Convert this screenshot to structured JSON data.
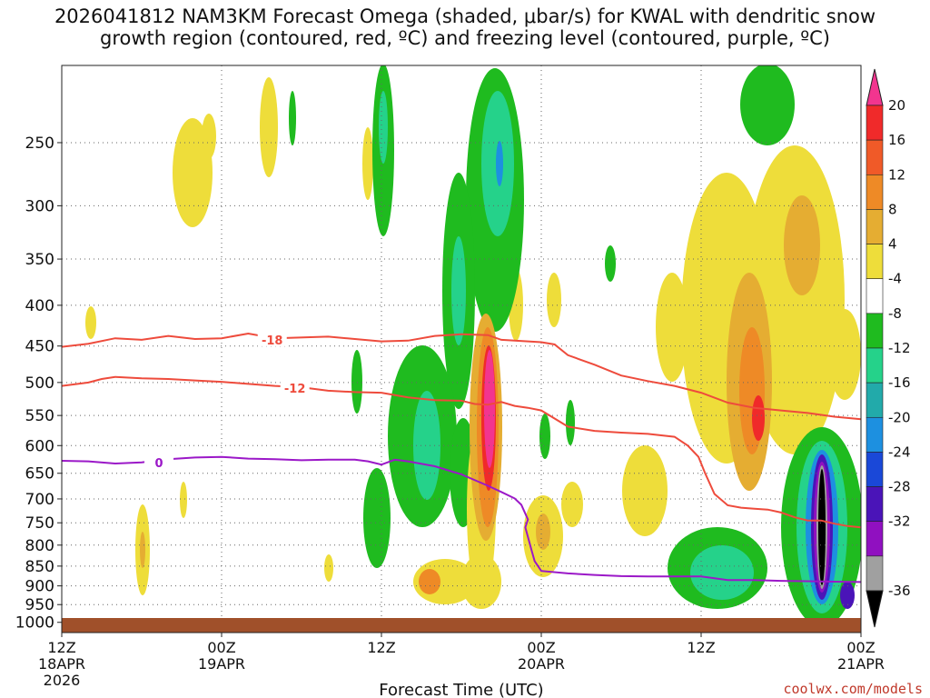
{
  "chart_data": {
    "type": "heatmap",
    "title_line1": "2026041812 NAM3KM Forecast Omega (shaded, μbar/s) for KWAL with dendritic snow",
    "title_line2": "growth region (contoured, red, ºC) and freezing level (contoured, purple, ºC)",
    "xlabel": "Forecast Time (UTC)",
    "credit": "coolwx.com/models",
    "x_ticks": [
      {
        "hour": 0,
        "line1": "12Z",
        "line2": "18APR",
        "line3": "2026"
      },
      {
        "hour": 12,
        "line1": "00Z",
        "line2": "19APR",
        "line3": ""
      },
      {
        "hour": 24,
        "line1": "12Z",
        "line2": "",
        "line3": ""
      },
      {
        "hour": 36,
        "line1": "00Z",
        "line2": "20APR",
        "line3": ""
      },
      {
        "hour": 48,
        "line1": "12Z",
        "line2": "",
        "line3": ""
      },
      {
        "hour": 60,
        "line1": "00Z",
        "line2": "21APR",
        "line3": ""
      }
    ],
    "x_range_hours": [
      0,
      60
    ],
    "y_ticks": [
      250,
      300,
      350,
      400,
      450,
      500,
      550,
      600,
      650,
      700,
      750,
      800,
      850,
      900,
      950,
      1000
    ],
    "y_labels": [
      "250",
      "300",
      "350",
      "400",
      "450",
      "500",
      "550",
      "600",
      "650",
      "700",
      "750",
      "800",
      "850",
      "900",
      "950",
      "1000"
    ],
    "y_range_hPa": [
      200,
      1030
    ],
    "colorbar_labels": [
      "20",
      "16",
      "12",
      "8",
      "4",
      "-4",
      "-8",
      "-12",
      "-16",
      "-20",
      "-24",
      "-28",
      "-32",
      "-36"
    ],
    "colorbar_colors": [
      "#f2358f",
      "#f02a2a",
      "#f05a28",
      "#ee8a26",
      "#e5ad32",
      "#eedd3a",
      "#ffffff",
      "#1fbb1f",
      "#25d28a",
      "#22aaaa",
      "#1d90e0",
      "#1a48d8",
      "#4a14b8",
      "#9010c0",
      "#a0a0a0",
      "#000000"
    ],
    "colors": {
      "dgz": "#ee4b3c",
      "freezing": "#9b18c8",
      "ground": "#a0502a"
    },
    "contours": [
      {
        "name": "dgz-minus18",
        "label": "-18",
        "label_hour": 15.8,
        "label_p": 442,
        "points": [
          [
            0,
            451
          ],
          [
            2,
            447
          ],
          [
            4,
            440
          ],
          [
            6,
            442
          ],
          [
            8,
            437
          ],
          [
            10,
            441
          ],
          [
            12,
            440
          ],
          [
            14,
            434
          ],
          [
            16,
            440
          ],
          [
            20,
            438
          ],
          [
            22,
            441
          ],
          [
            24,
            444
          ],
          [
            26,
            443
          ],
          [
            28,
            437
          ],
          [
            30,
            435
          ],
          [
            32,
            436
          ],
          [
            33,
            442
          ],
          [
            34,
            443
          ],
          [
            36,
            445
          ],
          [
            37,
            448
          ],
          [
            38,
            462
          ],
          [
            40,
            475
          ],
          [
            42,
            490
          ],
          [
            44,
            498
          ],
          [
            46,
            505
          ],
          [
            48,
            515
          ],
          [
            50,
            530
          ],
          [
            52,
            538
          ],
          [
            54,
            542
          ],
          [
            56,
            546
          ],
          [
            58,
            552
          ],
          [
            60,
            556
          ]
        ]
      },
      {
        "name": "dgz-minus12",
        "label": "-12",
        "label_hour": 17.5,
        "label_p": 508,
        "points": [
          [
            0,
            505
          ],
          [
            2,
            500
          ],
          [
            3,
            495
          ],
          [
            4,
            492
          ],
          [
            6,
            494
          ],
          [
            8,
            495
          ],
          [
            10,
            497
          ],
          [
            12,
            499
          ],
          [
            14,
            502
          ],
          [
            16,
            505
          ],
          [
            18,
            507
          ],
          [
            20,
            512
          ],
          [
            22,
            514
          ],
          [
            24,
            515
          ],
          [
            26,
            522
          ],
          [
            28,
            526
          ],
          [
            30,
            527
          ],
          [
            31,
            532
          ],
          [
            32,
            533
          ],
          [
            33,
            529
          ],
          [
            34,
            535
          ],
          [
            35,
            538
          ],
          [
            36,
            542
          ],
          [
            38,
            568
          ],
          [
            40,
            575
          ],
          [
            42,
            578
          ],
          [
            44,
            580
          ],
          [
            46,
            585
          ],
          [
            47,
            600
          ],
          [
            47.8,
            620
          ],
          [
            48.3,
            650
          ],
          [
            49,
            690
          ],
          [
            50,
            713
          ],
          [
            51,
            718
          ],
          [
            52,
            720
          ],
          [
            53,
            722
          ],
          [
            54,
            728
          ],
          [
            55,
            738
          ],
          [
            56,
            745
          ],
          [
            57,
            745
          ],
          [
            58,
            752
          ],
          [
            59,
            757
          ],
          [
            60,
            760
          ]
        ]
      },
      {
        "name": "freezing-0",
        "label": "0",
        "label_hour": 7.3,
        "label_p": 630,
        "points": [
          [
            0,
            627
          ],
          [
            2,
            628
          ],
          [
            4,
            632
          ],
          [
            6,
            630
          ],
          [
            8,
            624
          ],
          [
            10,
            621
          ],
          [
            12,
            620
          ],
          [
            14,
            623
          ],
          [
            16,
            624
          ],
          [
            18,
            626
          ],
          [
            20,
            625
          ],
          [
            22,
            625
          ],
          [
            23,
            628
          ],
          [
            24,
            634
          ],
          [
            25,
            625
          ],
          [
            26,
            628
          ],
          [
            28,
            637
          ],
          [
            30,
            652
          ],
          [
            32,
            674
          ],
          [
            33,
            686
          ],
          [
            34,
            699
          ],
          [
            34.5,
            712
          ],
          [
            35,
            743
          ],
          [
            34.8,
            760
          ],
          [
            35.3,
            815
          ],
          [
            35.5,
            838
          ],
          [
            36,
            862
          ],
          [
            38,
            868
          ],
          [
            40,
            872
          ],
          [
            42,
            875
          ],
          [
            44,
            876
          ],
          [
            46,
            876
          ],
          [
            48,
            876
          ],
          [
            50,
            885
          ],
          [
            52,
            885
          ],
          [
            54,
            887
          ],
          [
            56,
            888
          ],
          [
            58,
            889
          ],
          [
            60,
            890
          ]
        ]
      }
    ]
  }
}
